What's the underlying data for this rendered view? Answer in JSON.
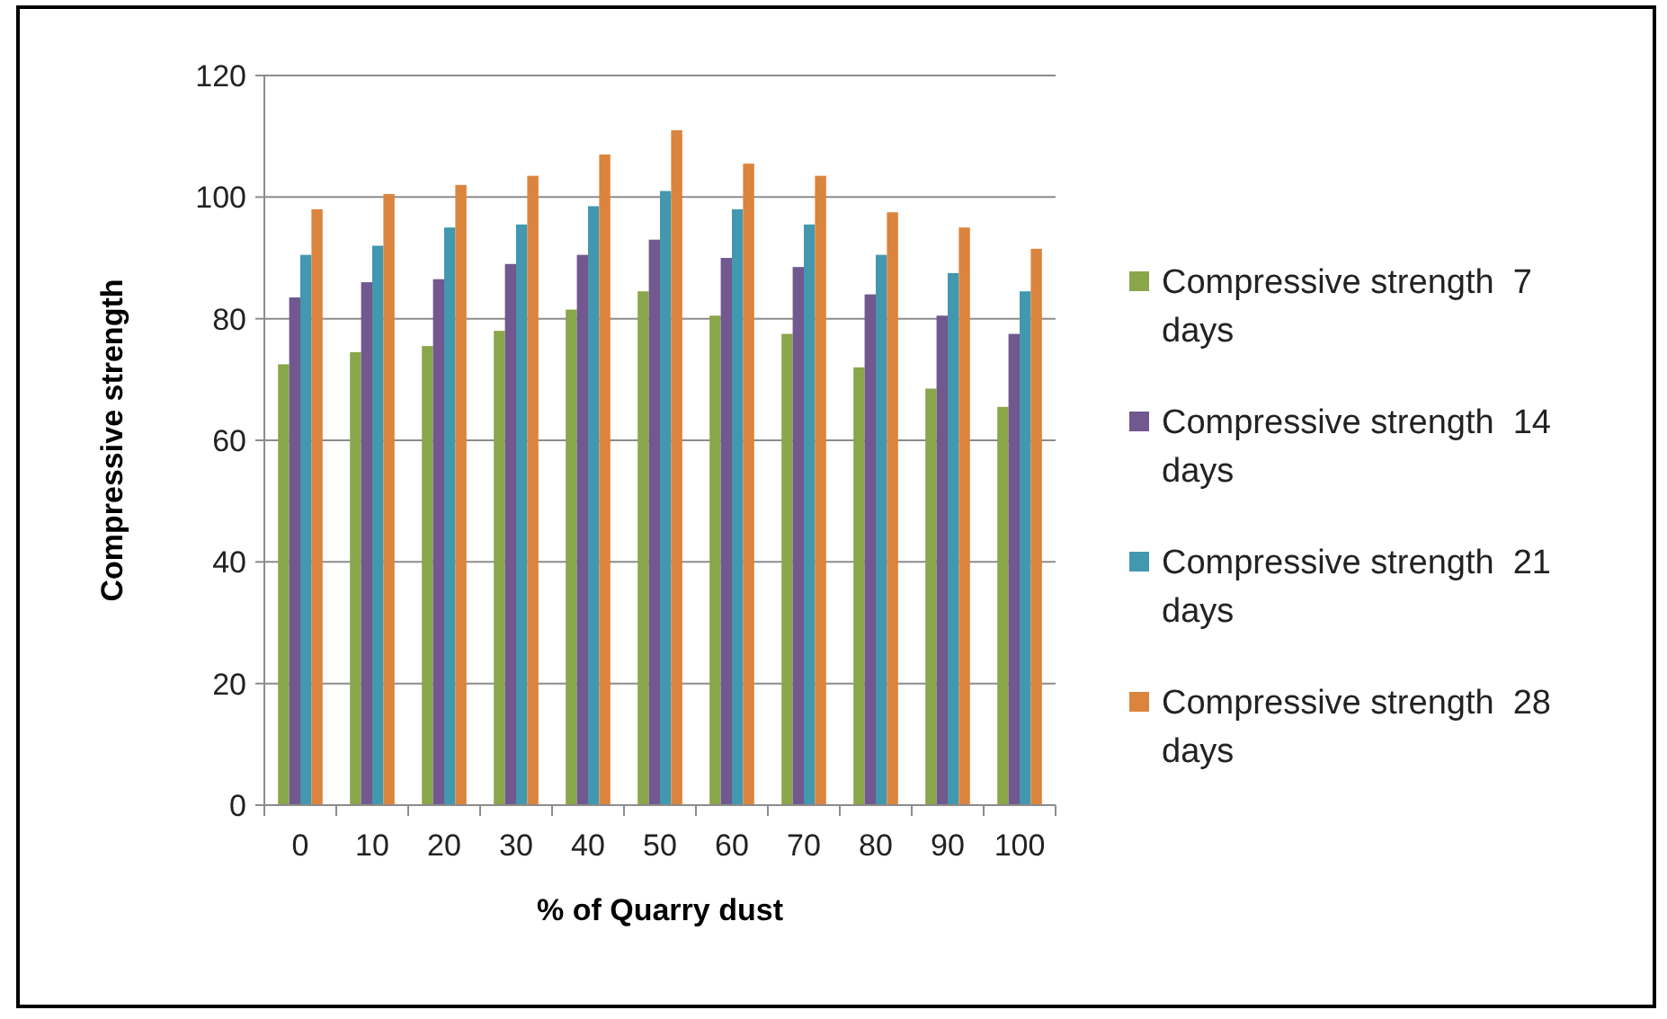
{
  "chart_data": {
    "type": "bar",
    "xlabel": "% of Quarry dust",
    "ylabel": "Compressive strength",
    "categories": [
      "0",
      "10",
      "20",
      "30",
      "40",
      "50",
      "60",
      "70",
      "80",
      "90",
      "100"
    ],
    "series": [
      {
        "name": "Compressive strength  7 days",
        "color": "#8aa64a",
        "values": [
          72.5,
          74.5,
          75.5,
          78,
          81.5,
          84.5,
          80.5,
          77.5,
          72,
          68.5,
          65.5
        ]
      },
      {
        "name": "Compressive strength  14 days",
        "color": "#71588f",
        "values": [
          83.5,
          86,
          86.5,
          89,
          90.5,
          93,
          90,
          88.5,
          84,
          80.5,
          77.5
        ]
      },
      {
        "name": "Compressive strength  21 days",
        "color": "#4198af",
        "values": [
          90.5,
          92,
          95,
          95.5,
          98.5,
          101,
          98,
          95.5,
          90.5,
          87.5,
          84.5
        ]
      },
      {
        "name": "Compressive strength  28 days",
        "color": "#db843d",
        "values": [
          98,
          100.5,
          102,
          103.5,
          107,
          111,
          105.5,
          103.5,
          97.5,
          95,
          91.5
        ]
      }
    ],
    "ylim": [
      0,
      120
    ],
    "yticks": [
      0,
      20,
      40,
      60,
      80,
      100,
      120
    ],
    "grid": "y",
    "legend": "right"
  }
}
